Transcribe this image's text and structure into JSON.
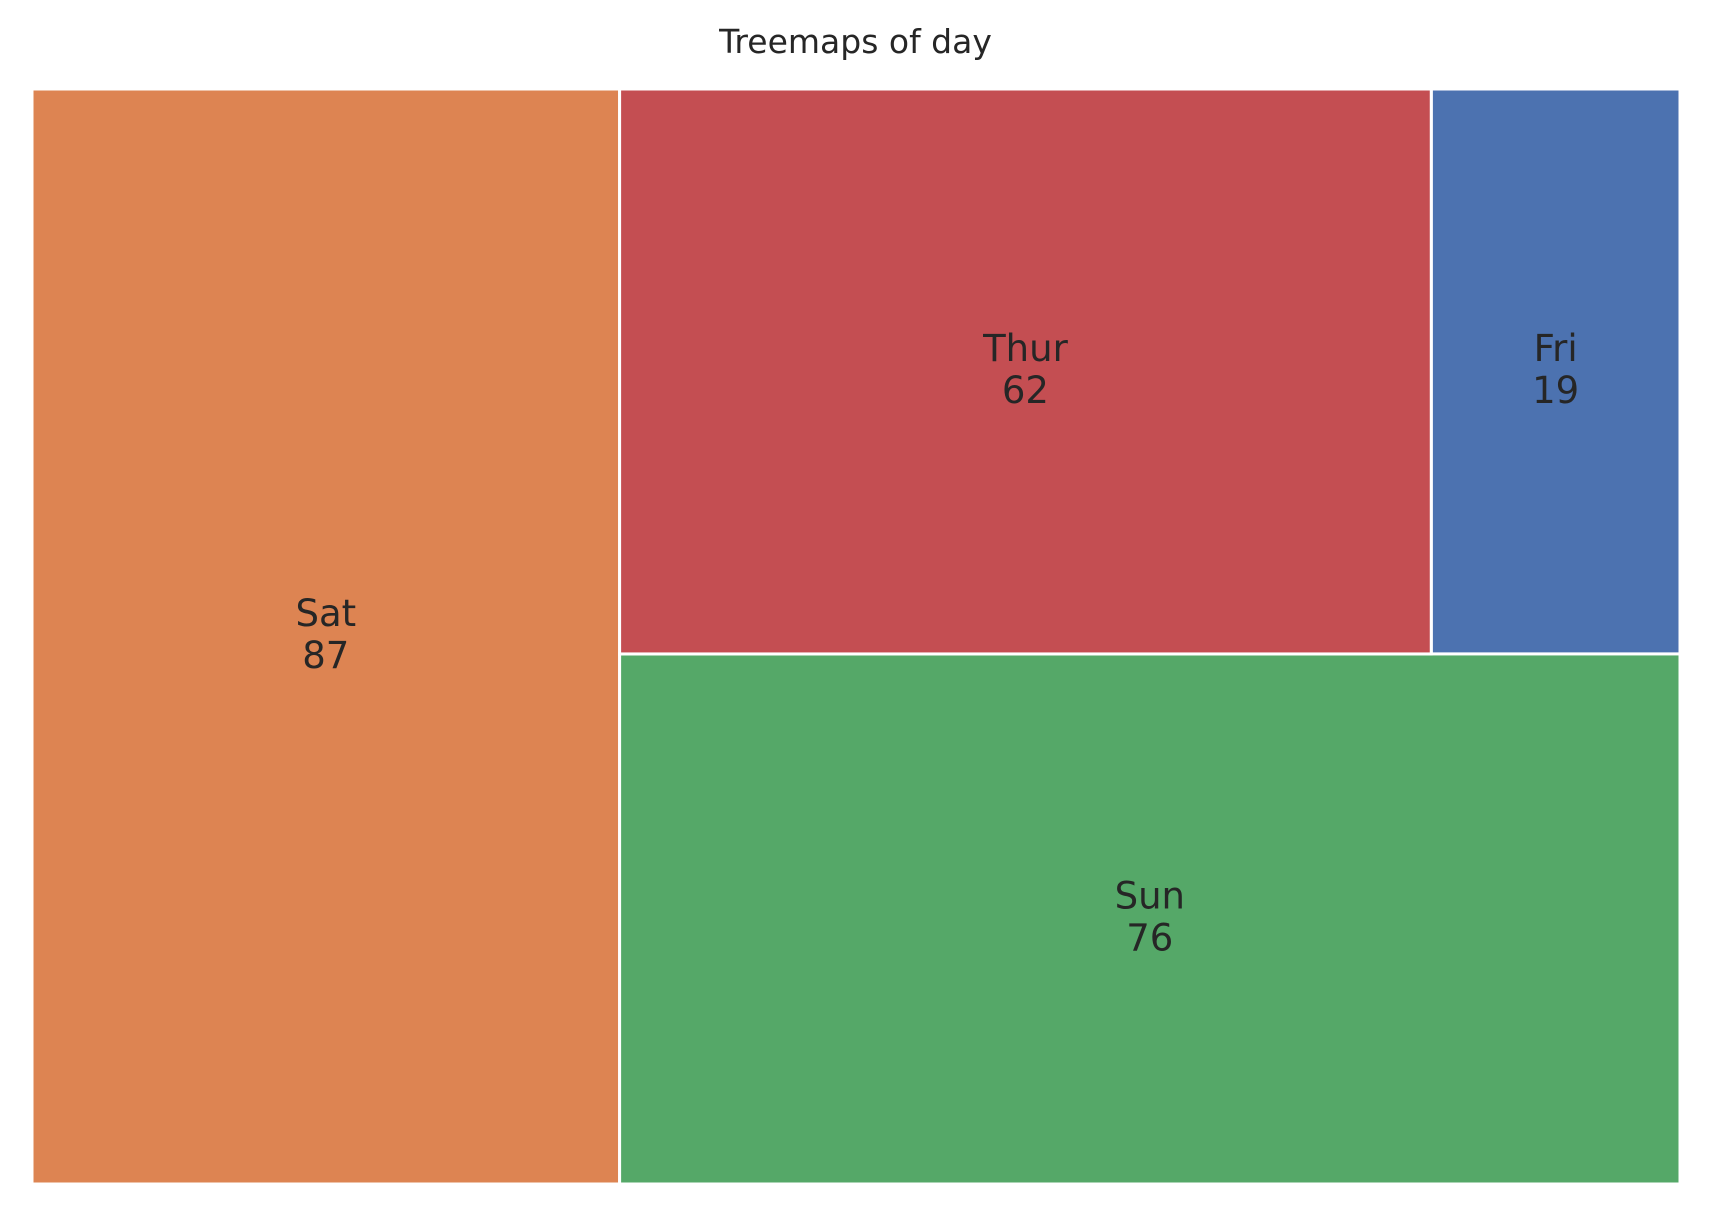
{
  "chart_data": {
    "type": "treemap",
    "title": "Treemaps of day",
    "items": [
      {
        "label": "Fri",
        "value": 19,
        "value_text": "19",
        "color": "#4c72b0"
      },
      {
        "label": "Sat",
        "value": 87,
        "value_text": "87",
        "color": "#dd8452"
      },
      {
        "label": "Sun",
        "value": 76,
        "value_text": "76",
        "color": "#55a868"
      },
      {
        "label": "Thur",
        "value": 62,
        "value_text": "62",
        "color": "#c44e52"
      }
    ]
  }
}
